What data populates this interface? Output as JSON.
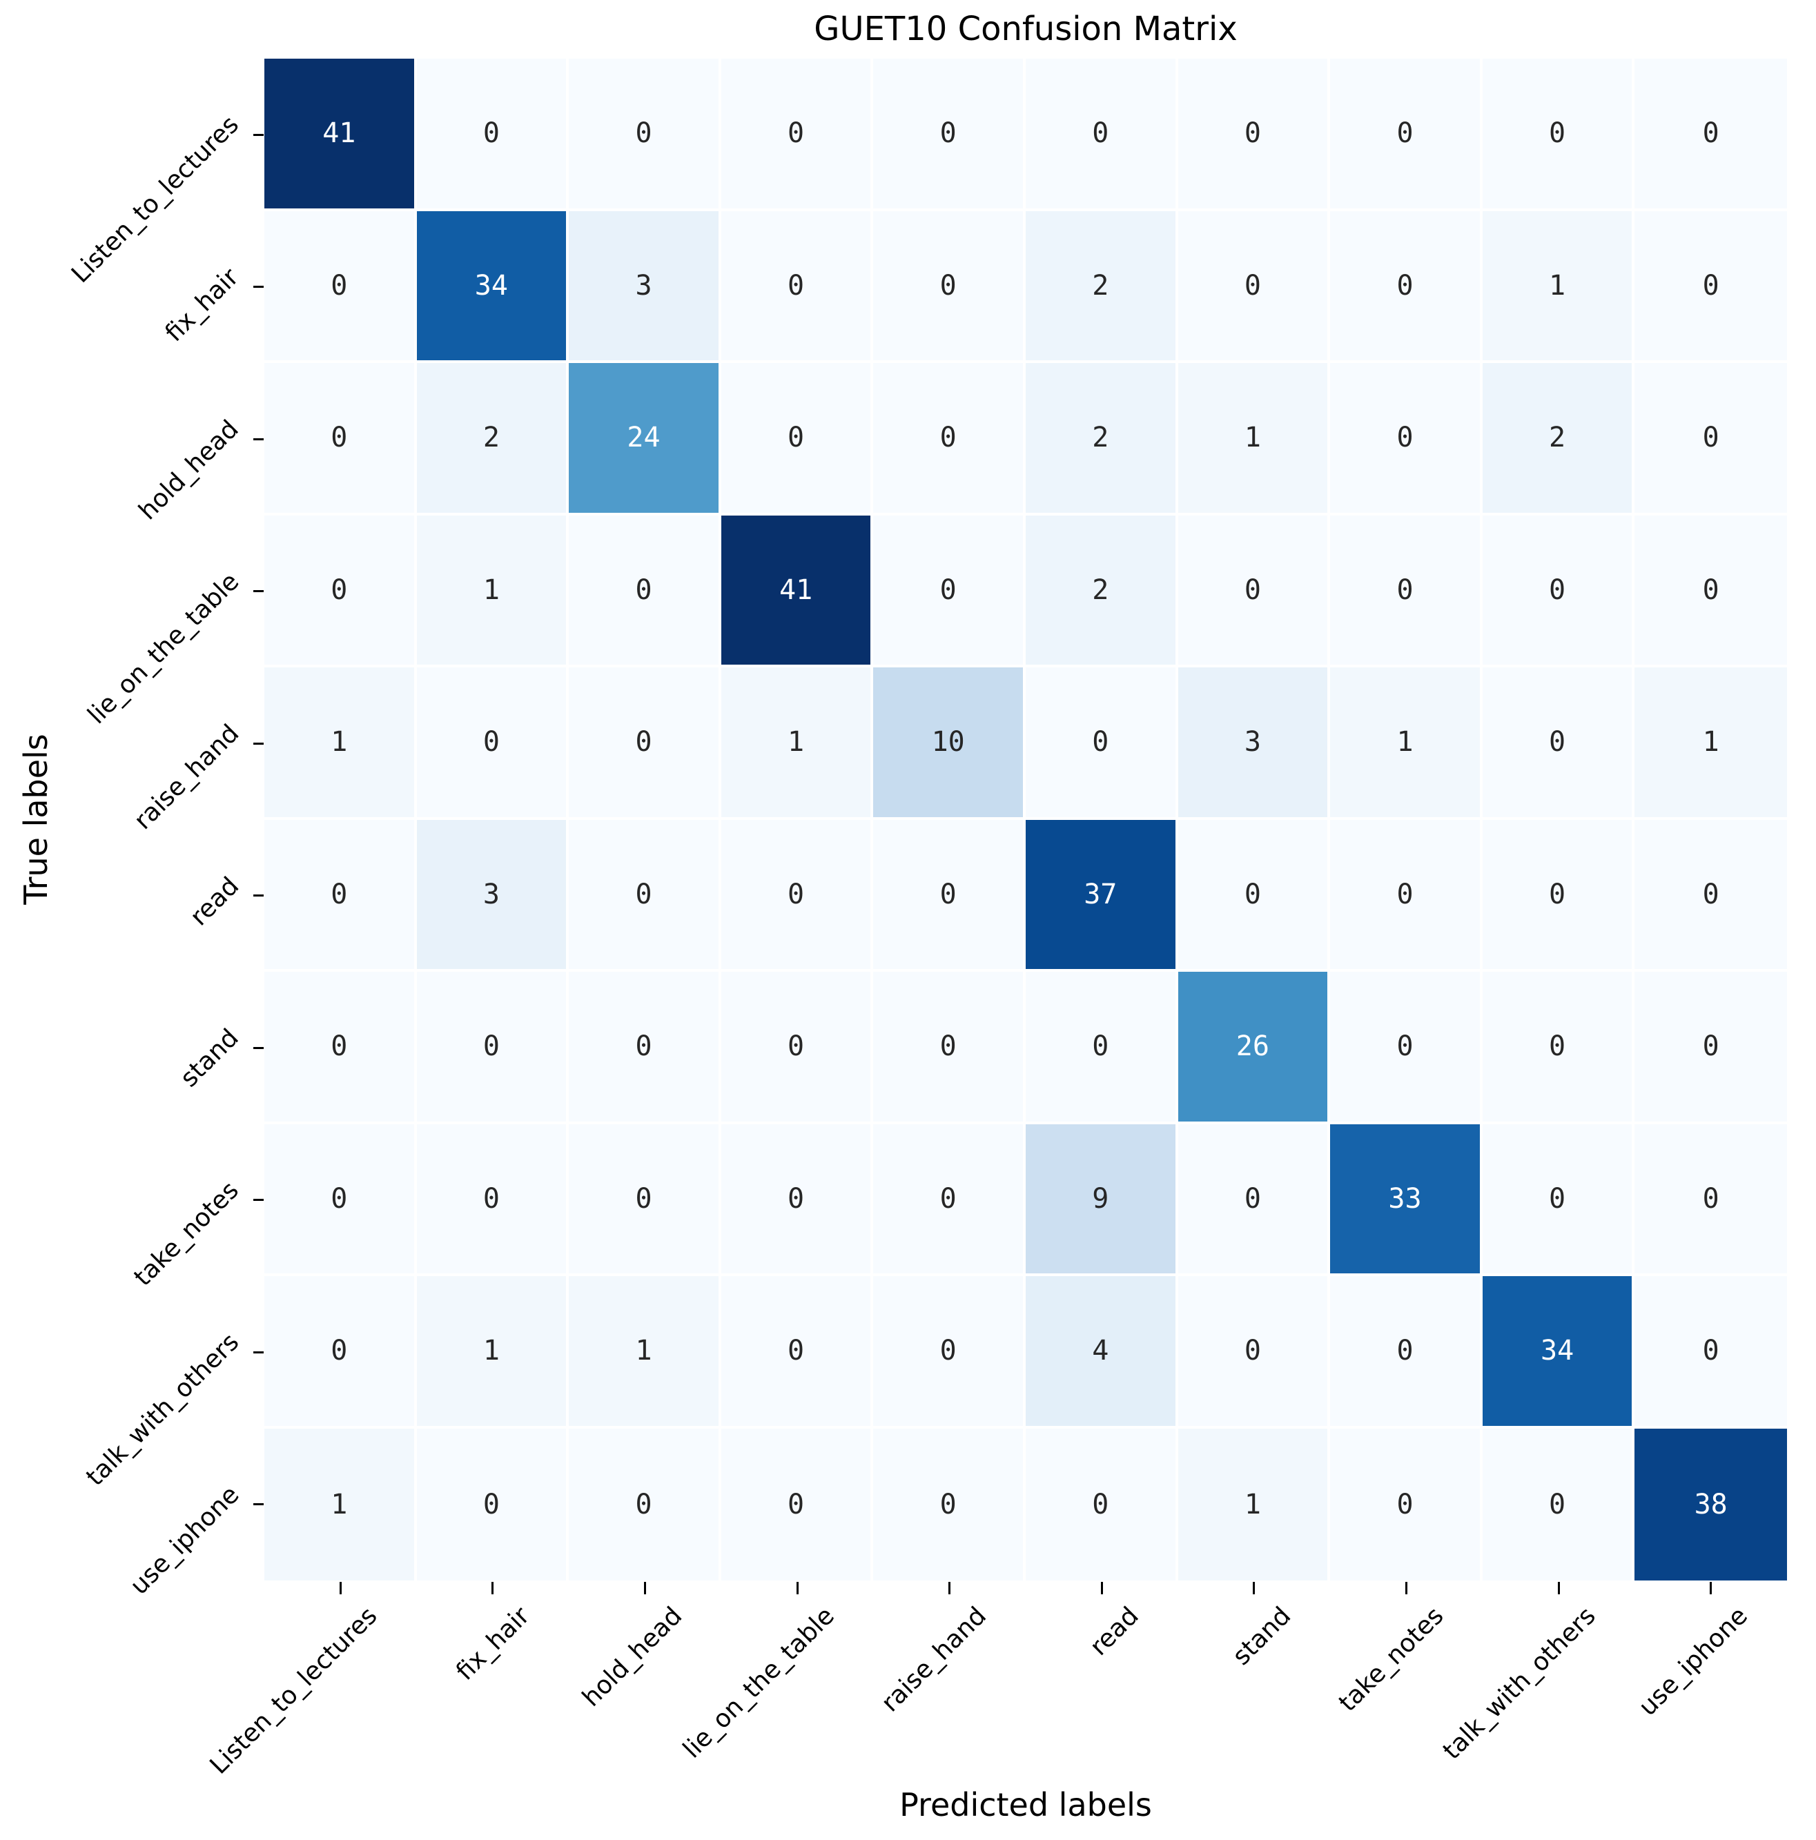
{
  "chart_data": {
    "type": "heatmap",
    "title": "GUET10 Confusion Matrix",
    "xlabel": "Predicted labels",
    "ylabel": "True labels",
    "categories": [
      "Listen_to_lectures",
      "fix_hair",
      "hold_head",
      "lie_on_the_table",
      "raise_hand",
      "read",
      "stand",
      "take_notes",
      "talk_with_others",
      "use_iphone"
    ],
    "x_tick_labels": [
      "Listen_to_lectures",
      "fix_hair",
      "hold_head",
      "lie_on_the_table",
      "raise_hand",
      "read",
      "stand",
      "take_notes",
      "talk_with_others",
      "use_iphone"
    ],
    "y_tick_labels": [
      "Listen_to_lectures",
      "fix_hair",
      "hold_head",
      "lie_on_the_table",
      "raise_hand",
      "read",
      "stand",
      "take_notes",
      "talk_with_others",
      "use_iphone"
    ],
    "matrix": [
      [
        41,
        0,
        0,
        0,
        0,
        0,
        0,
        0,
        0,
        0
      ],
      [
        0,
        34,
        3,
        0,
        0,
        2,
        0,
        0,
        1,
        0
      ],
      [
        0,
        2,
        24,
        0,
        0,
        2,
        1,
        0,
        2,
        0
      ],
      [
        0,
        1,
        0,
        41,
        0,
        2,
        0,
        0,
        0,
        0
      ],
      [
        1,
        0,
        0,
        1,
        10,
        0,
        3,
        1,
        0,
        1
      ],
      [
        0,
        3,
        0,
        0,
        0,
        37,
        0,
        0,
        0,
        0
      ],
      [
        0,
        0,
        0,
        0,
        0,
        0,
        26,
        0,
        0,
        0
      ],
      [
        0,
        0,
        0,
        0,
        0,
        9,
        0,
        33,
        0,
        0
      ],
      [
        0,
        1,
        1,
        0,
        0,
        4,
        0,
        0,
        34,
        0
      ],
      [
        1,
        0,
        0,
        0,
        0,
        0,
        1,
        0,
        0,
        38
      ]
    ],
    "vmin": 0,
    "vmax": 41,
    "colormap": "Blues",
    "colormap_stops": [
      "#f7fbff",
      "#deebf7",
      "#c6dbef",
      "#9ecae1",
      "#6baed6",
      "#4292c6",
      "#2171b5",
      "#08519c",
      "#08306b"
    ],
    "gridline_color": "#ffffff",
    "tick_color": "#000000",
    "annotation_color_dark": "#262626",
    "annotation_color_light": "#ffffff",
    "background": "#ffffff"
  }
}
